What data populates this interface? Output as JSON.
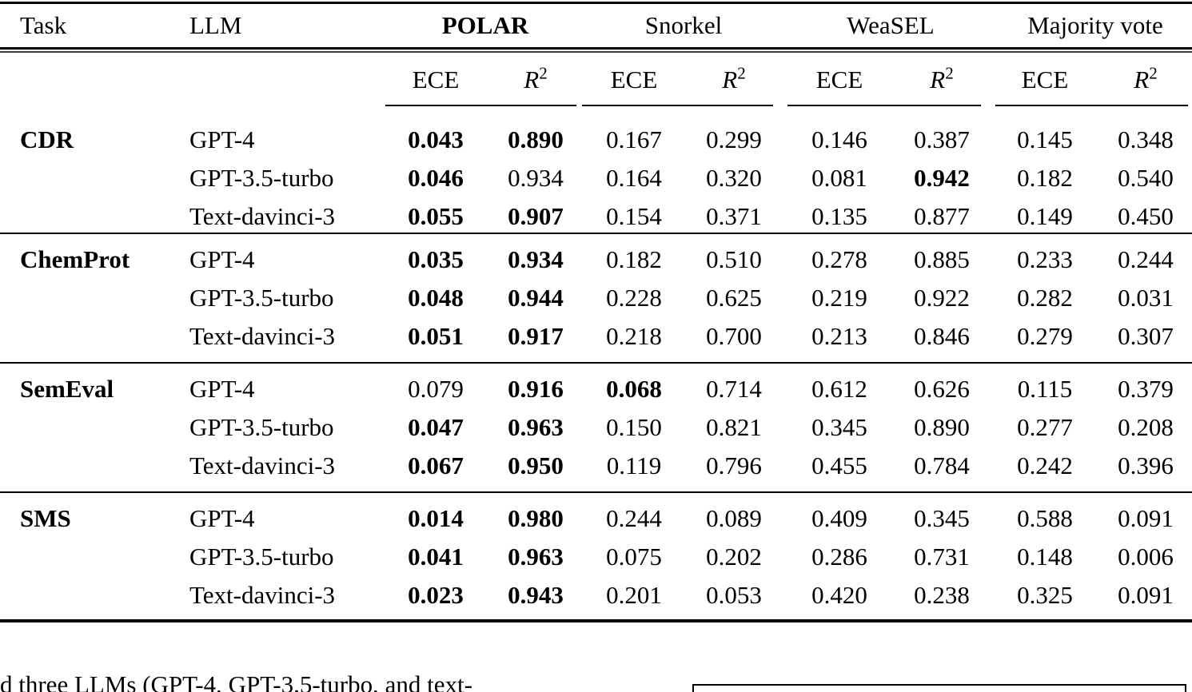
{
  "page": {
    "background": "#ffffff",
    "text_color": "#000000"
  },
  "table": {
    "header": {
      "task": "Task",
      "llm": "LLM"
    },
    "method_groups": [
      {
        "label": "POLAR",
        "bold": true
      },
      {
        "label": "Snorkel",
        "bold": false
      },
      {
        "label": "WeaSEL",
        "bold": false
      },
      {
        "label": "Majority vote",
        "bold": false
      }
    ],
    "metric_header": {
      "ece": "ECE",
      "r2_base": "R",
      "r2_sup": "2"
    },
    "groups": [
      {
        "task": "CDR",
        "rows": [
          {
            "llm": "GPT-4",
            "values": [
              "0.043",
              "0.890",
              "0.167",
              "0.299",
              "0.146",
              "0.387",
              "0.145",
              "0.348"
            ],
            "bold": [
              true,
              true,
              false,
              false,
              false,
              false,
              false,
              false
            ]
          },
          {
            "llm": "GPT-3.5-turbo",
            "values": [
              "0.046",
              "0.934",
              "0.164",
              "0.320",
              "0.081",
              "0.942",
              "0.182",
              "0.540"
            ],
            "bold": [
              true,
              false,
              false,
              false,
              false,
              true,
              false,
              false
            ]
          },
          {
            "llm": "Text-davinci-3",
            "values": [
              "0.055",
              "0.907",
              "0.154",
              "0.371",
              "0.135",
              "0.877",
              "0.149",
              "0.450"
            ],
            "bold": [
              true,
              true,
              false,
              false,
              false,
              false,
              false,
              false
            ]
          }
        ]
      },
      {
        "task": "ChemProt",
        "rows": [
          {
            "llm": "GPT-4",
            "values": [
              "0.035",
              "0.934",
              "0.182",
              "0.510",
              "0.278",
              "0.885",
              "0.233",
              "0.244"
            ],
            "bold": [
              true,
              true,
              false,
              false,
              false,
              false,
              false,
              false
            ]
          },
          {
            "llm": "GPT-3.5-turbo",
            "values": [
              "0.048",
              "0.944",
              "0.228",
              "0.625",
              "0.219",
              "0.922",
              "0.282",
              "0.031"
            ],
            "bold": [
              true,
              true,
              false,
              false,
              false,
              false,
              false,
              false
            ]
          },
          {
            "llm": "Text-davinci-3",
            "values": [
              "0.051",
              "0.917",
              "0.218",
              "0.700",
              "0.213",
              "0.846",
              "0.279",
              "0.307"
            ],
            "bold": [
              true,
              true,
              false,
              false,
              false,
              false,
              false,
              false
            ]
          }
        ]
      },
      {
        "task": "SemEval",
        "rows": [
          {
            "llm": "GPT-4",
            "values": [
              "0.079",
              "0.916",
              "0.068",
              "0.714",
              "0.612",
              "0.626",
              "0.115",
              "0.379"
            ],
            "bold": [
              false,
              true,
              true,
              false,
              false,
              false,
              false,
              false
            ]
          },
          {
            "llm": "GPT-3.5-turbo",
            "values": [
              "0.047",
              "0.963",
              "0.150",
              "0.821",
              "0.345",
              "0.890",
              "0.277",
              "0.208"
            ],
            "bold": [
              true,
              true,
              false,
              false,
              false,
              false,
              false,
              false
            ]
          },
          {
            "llm": "Text-davinci-3",
            "values": [
              "0.067",
              "0.950",
              "0.119",
              "0.796",
              "0.455",
              "0.784",
              "0.242",
              "0.396"
            ],
            "bold": [
              true,
              true,
              false,
              false,
              false,
              false,
              false,
              false
            ]
          }
        ]
      },
      {
        "task": "SMS",
        "rows": [
          {
            "llm": "GPT-4",
            "values": [
              "0.014",
              "0.980",
              "0.244",
              "0.089",
              "0.409",
              "0.345",
              "0.588",
              "0.091"
            ],
            "bold": [
              true,
              true,
              false,
              false,
              false,
              false,
              false,
              false
            ]
          },
          {
            "llm": "GPT-3.5-turbo",
            "values": [
              "0.041",
              "0.963",
              "0.075",
              "0.202",
              "0.286",
              "0.731",
              "0.148",
              "0.006"
            ],
            "bold": [
              true,
              true,
              false,
              false,
              false,
              false,
              false,
              false
            ]
          },
          {
            "llm": "Text-davinci-3",
            "values": [
              "0.023",
              "0.943",
              "0.201",
              "0.053",
              "0.420",
              "0.238",
              "0.325",
              "0.091"
            ],
            "bold": [
              true,
              true,
              false,
              false,
              false,
              false,
              false,
              false
            ]
          }
        ]
      }
    ]
  },
  "caption_fragment": "d three LLMs (GPT-4, GPT-3.5-turbo, and text-"
}
